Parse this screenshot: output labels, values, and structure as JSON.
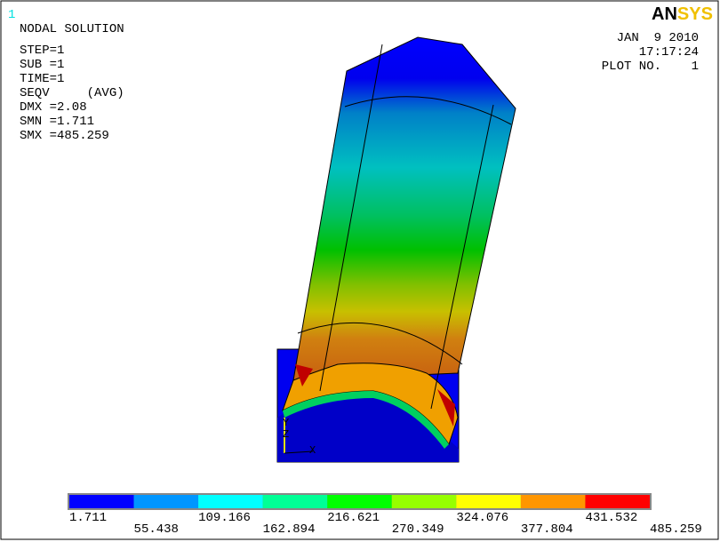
{
  "window_number": "1",
  "logo": [
    "AN",
    "SYS"
  ],
  "info": [
    "NODAL SOLUTION",
    "STEP=1",
    "SUB =1",
    "TIME=1",
    "SEQV     (AVG)",
    "DMX =2.08",
    "SMN =1.711",
    "SMX =485.259"
  ],
  "header": [
    "JAN  9 2010",
    "17:17:24",
    "PLOT NO.    1"
  ],
  "triad": [
    "Y",
    "Z",
    "X"
  ],
  "legend": {
    "colors": [
      "#0000ff",
      "#0096ff",
      "#00ffff",
      "#00ff96",
      "#00ff00",
      "#96ff00",
      "#ffff00",
      "#ff9600",
      "#ff0000"
    ],
    "labels": [
      "1.711",
      "55.438",
      "109.166",
      "162.894",
      "216.621",
      "270.349",
      "324.076",
      "377.804",
      "431.532",
      "485.259"
    ]
  }
}
